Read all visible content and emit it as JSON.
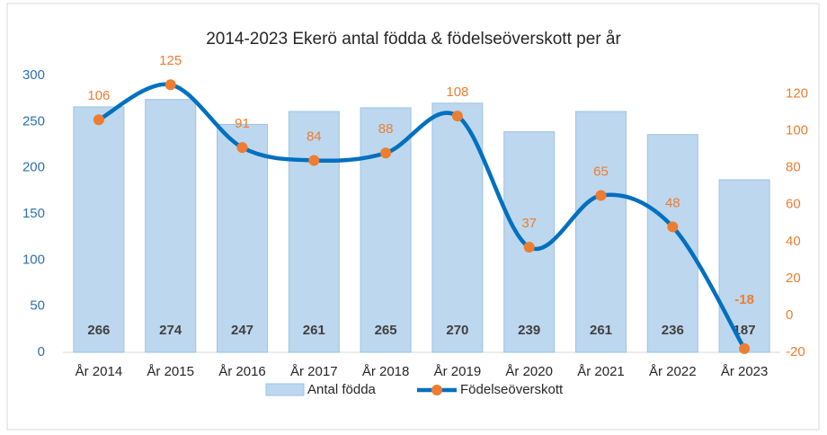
{
  "chart_data": {
    "type": "bar-line",
    "title": "2014-2023 Ekerö antal födda & födelseöverskott per år",
    "categories": [
      "År 2014",
      "År 2015",
      "År 2016",
      "År 2017",
      "År 2018",
      "År 2019",
      "År 2020",
      "År 2021",
      "År 2022",
      "År 2023"
    ],
    "series": [
      {
        "name": "Antal födda",
        "type": "bar",
        "color": "#bdd7ee",
        "values": [
          266,
          274,
          247,
          261,
          265,
          270,
          239,
          261,
          236,
          187
        ]
      },
      {
        "name": "Födelseöverskott",
        "type": "line",
        "axis": "y2",
        "color": "#0070c0",
        "marker_color": "#ed7d31",
        "values": [
          106,
          125,
          91,
          84,
          88,
          108,
          37,
          65,
          48,
          -18
        ]
      }
    ],
    "ylim": [
      0,
      300
    ],
    "yticks": [
      0,
      50,
      100,
      150,
      200,
      250,
      300
    ],
    "y2lim": [
      -20,
      130
    ],
    "y2ticks": [
      -20,
      0,
      20,
      40,
      60,
      80,
      100,
      120
    ],
    "legend": "bottom"
  }
}
